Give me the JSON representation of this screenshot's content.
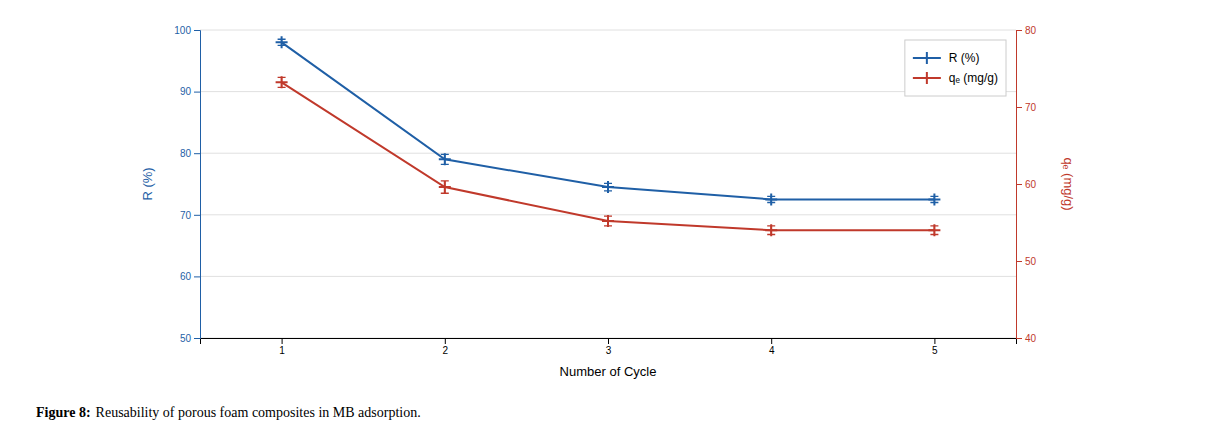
{
  "chart_data": {
    "type": "line",
    "x": [
      1,
      2,
      3,
      4,
      5
    ],
    "xlim": [
      0.5,
      5.5
    ],
    "xticks": [
      1,
      2,
      3,
      4,
      5
    ],
    "ylim": [
      50,
      100
    ],
    "yticks": [
      50,
      60,
      70,
      80,
      90,
      100
    ],
    "y2lim": [
      40,
      80
    ],
    "y2ticks": [
      40,
      50,
      60,
      70,
      80
    ],
    "x_label": "Number of Cycle",
    "y_label": "R (%)",
    "y2_label": "qₑ (mg/g)",
    "annotations": [
      "Figure 8:",
      "Reusability of porous foam composites in MB adsorption."
    ],
    "grid": true,
    "legend": "upper right",
    "series": [
      {
        "name": "R (%)",
        "color": "#1f5fa6",
        "marker": "plus",
        "line_style": "solid",
        "axis": "y",
        "values": [
          98.0,
          79.0,
          74.5,
          72.5,
          72.5
        ],
        "errors": [
          0.5,
          0.8,
          0.6,
          0.5,
          0.5
        ]
      },
      {
        "name": "qₑ (mg/g)",
        "color": "#c0392b",
        "marker": "plus",
        "line_style": "solid",
        "axis": "y2",
        "values": [
          73.2,
          59.6,
          55.2,
          54.0,
          54.0
        ],
        "errors": [
          0.64,
          0.8,
          0.64,
          0.56,
          0.56
        ]
      }
    ]
  }
}
